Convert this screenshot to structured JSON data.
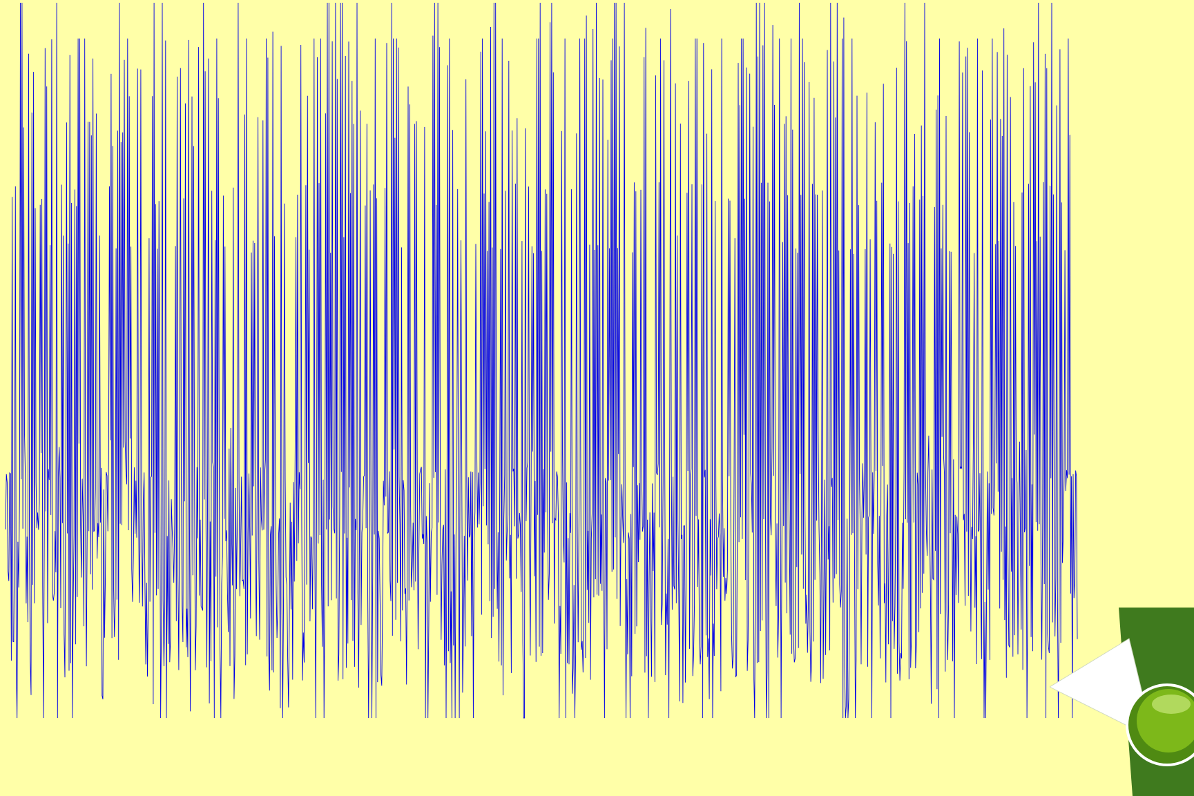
{
  "colors": {
    "background": "#FFFFA8",
    "trace": "#0000E6",
    "button_shadow": "#3F7A1E",
    "button_green": "#7DB81A",
    "button_arrow": "#FFFFFF"
  },
  "icons": {
    "next_button": "page-curl-arrow-icon"
  },
  "chart_data": {
    "type": "line",
    "title": "",
    "xlabel": "",
    "ylabel": "",
    "grid": false,
    "legend": "none",
    "description_free": true,
    "x_range": [
      0,
      1560
    ],
    "y_range": [
      -1,
      1
    ],
    "levels": [
      1.0,
      0.9,
      0.75,
      0.5,
      0.35,
      0.0,
      -0.35,
      -0.5,
      -0.7,
      -0.85,
      -1.0
    ],
    "series": [
      {
        "values_sample": [
          0.9,
          -0.5,
          0.7,
          -0.35,
          0.5,
          -0.9,
          0.35,
          -0.7,
          0.75,
          -0.5,
          0.9,
          -0.85,
          0.5,
          -0.35,
          0.7,
          -0.5,
          1.0,
          -0.7,
          0.35,
          -0.9,
          0.5,
          -0.35,
          0.75,
          -0.5,
          0.9,
          -1.0,
          0.5,
          -0.7,
          0.35,
          -0.5
        ]
      }
    ]
  }
}
